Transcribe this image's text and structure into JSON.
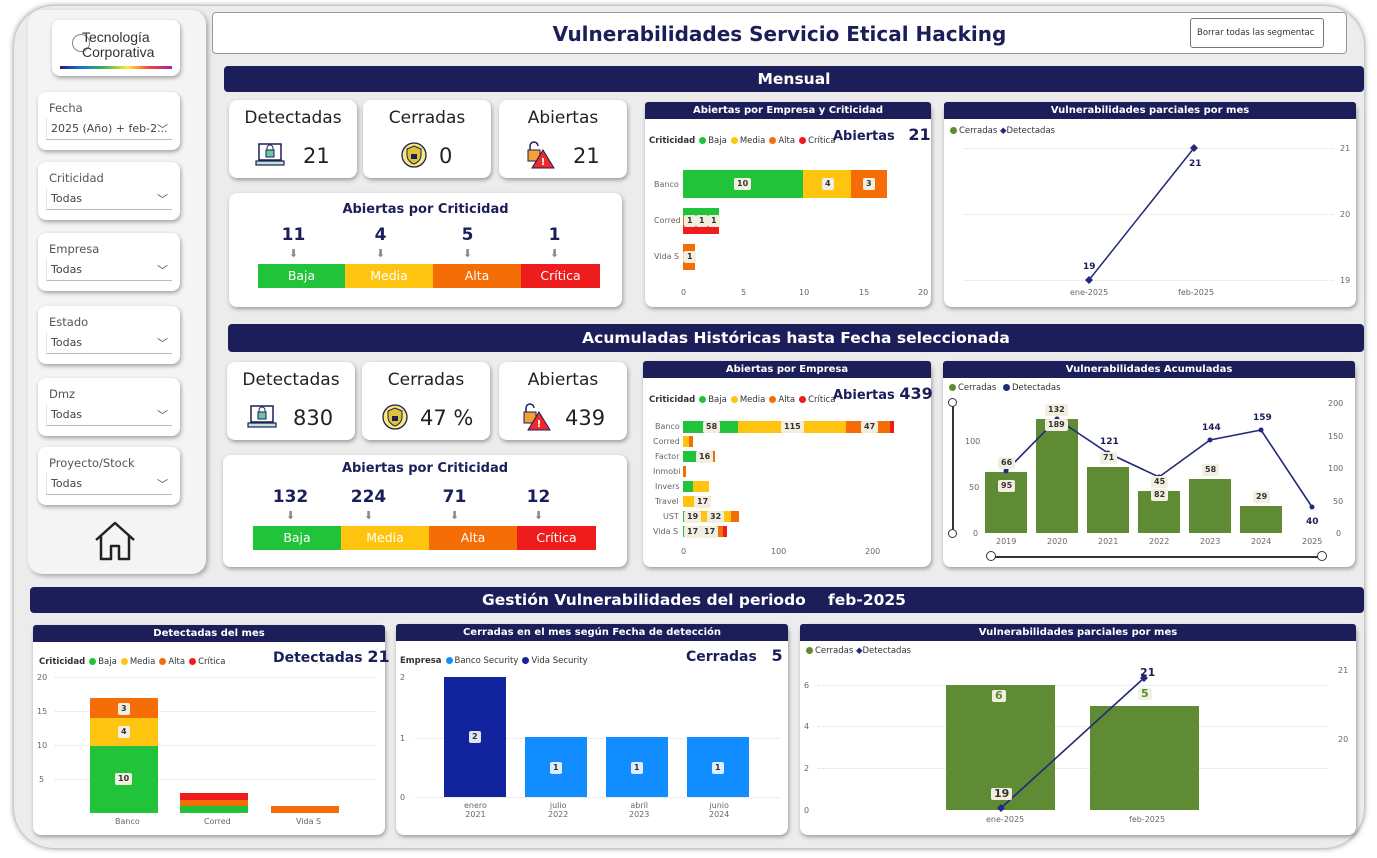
{
  "title": "Vulnerabilidades Servicio Etical Hacking",
  "clear_button": "Borrar todas las segmentac",
  "logo": {
    "line1": "Tecnología",
    "line2": "Corporativa"
  },
  "filters": [
    {
      "label": "Fecha",
      "value": "2025 (Año) + feb-2..."
    },
    {
      "label": "Criticidad",
      "value": "Todas"
    },
    {
      "label": "Empresa",
      "value": "Todas"
    },
    {
      "label": "Estado",
      "value": "Todas"
    },
    {
      "label": "Dmz",
      "value": "Todas"
    },
    {
      "label": "Proyecto/Stock",
      "value": "Todas"
    }
  ],
  "colors": {
    "navy": "#1c1e5a",
    "baja": "#21c33b",
    "media": "#fec40f",
    "alta": "#f46d06",
    "critica": "#ee1c1c",
    "cerradas": "#5f8b34",
    "detectadas": "#23297a",
    "blue_light": "#118dff",
    "blue_dark": "#12239e"
  },
  "criticidad_labels": {
    "title": "Criticidad",
    "baja": "Baja",
    "media": "Media",
    "alta": "Alta",
    "critica": "Crítica"
  },
  "mensual": {
    "band": "Mensual",
    "kpis": {
      "detectadas_label": "Detectadas",
      "detectadas": "21",
      "cerradas_label": "Cerradas",
      "cerradas": "0",
      "abiertas_label": "Abiertas",
      "abiertas": "21"
    },
    "crit_title": "Abiertas por Criticidad",
    "crit": {
      "baja": "11",
      "media": "4",
      "alta": "5",
      "critica": "1"
    },
    "empresa_chart": {
      "title": "Abiertas por Empresa y Criticidad",
      "big_label": "Abiertas",
      "big_value": "21",
      "categories": [
        "Banco",
        "Corred",
        "Vida S"
      ],
      "xticks": [
        "0",
        "5",
        "10",
        "15",
        "20"
      ],
      "seg_labels": {
        "banco": [
          "10",
          "4",
          "3"
        ],
        "corred": [
          "1",
          "1",
          "1"
        ],
        "vida": [
          "1"
        ]
      }
    },
    "parciales": {
      "title": "Vulnerabilidades parciales por mes",
      "legend": {
        "cerradas": "Cerradas",
        "detectadas": "Detectadas"
      },
      "x": [
        "ene-2025",
        "feb-2025"
      ],
      "points": [
        "19",
        "21"
      ],
      "yticks": [
        "21",
        "20",
        "19"
      ]
    }
  },
  "acumuladas": {
    "band": "Acumuladas Históricas hasta Fecha seleccionada",
    "kpis": {
      "detectadas_label": "Detectadas",
      "detectadas": "830",
      "cerradas_label": "Cerradas",
      "cerradas": "47 %",
      "abiertas_label": "Abiertas",
      "abiertas": "439"
    },
    "crit_title": "Abiertas por Criticidad",
    "crit": {
      "baja": "132",
      "media": "224",
      "alta": "71",
      "critica": "12"
    },
    "empresa_chart": {
      "title": "Abiertas por Empresa",
      "big_label": "Abiertas",
      "big_value": "439",
      "categories": [
        "Banco",
        "Corred",
        "Factor",
        "Inmobi",
        "Invers",
        "Travel",
        "UST",
        "Vida S"
      ],
      "xticks": [
        "0",
        "100",
        "200"
      ],
      "seg_labels": {
        "banco": [
          "58",
          "115",
          "47"
        ],
        "factor": [
          "16"
        ],
        "travel": [
          "17"
        ],
        "ust": [
          "19",
          "32"
        ],
        "vida": [
          "17",
          "17"
        ]
      }
    },
    "historicas": {
      "title": "Vulnerabilidades Acumuladas",
      "legend": {
        "cerradas": "Cerradas",
        "detectadas": "Detectadas"
      },
      "x": [
        "2019",
        "2020",
        "2021",
        "2022",
        "2023",
        "2024",
        "2025"
      ],
      "cerradas_labels": [
        "66",
        "132",
        "71",
        "45",
        "58",
        "29"
      ],
      "detectadas_labels": [
        "95",
        "189",
        "121",
        "82",
        "144",
        "159",
        "40"
      ],
      "yticks_left": [
        "100",
        "50",
        "0"
      ],
      "yticks_right": [
        "200",
        "150",
        "100",
        "50",
        "0"
      ]
    }
  },
  "gestion": {
    "band": "Gestión Vulnerabilidades del periodo",
    "period": "feb-2025",
    "detectadas_chart": {
      "title": "Detectadas del mes",
      "big_label": "Detectadas",
      "big_value": "21",
      "categories": [
        "Banco",
        "Corred",
        "Vida S"
      ],
      "yticks": [
        "20",
        "15",
        "10",
        "5"
      ],
      "seg_labels": [
        "10",
        "4",
        "3"
      ]
    },
    "cerradas_chart": {
      "title": "Cerradas en el mes según Fecha de detección",
      "big_label": "Cerradas",
      "big_value": "5",
      "legend_title": "Empresa",
      "legend": [
        "Banco Security",
        "Vida Security"
      ],
      "categories": [
        {
          "m": "enero",
          "y": "2021"
        },
        {
          "m": "julio",
          "y": "2022"
        },
        {
          "m": "abril",
          "y": "2023"
        },
        {
          "m": "junio",
          "y": "2024"
        }
      ],
      "values": [
        "2",
        "1",
        "1",
        "1"
      ],
      "yticks": [
        "2",
        "1",
        "0"
      ]
    },
    "parciales_chart": {
      "title": "Vulnerabilidades parciales por mes",
      "legend": {
        "cerradas": "Cerradas",
        "detectadas": "Detectadas"
      },
      "x": [
        "ene-2025",
        "feb-2025"
      ],
      "cerradas": [
        "6",
        "5"
      ],
      "detectadas": [
        "19",
        "21"
      ],
      "yticks_left": [
        "6",
        "4",
        "2",
        "0"
      ],
      "yticks_right": [
        "21",
        "20"
      ]
    }
  },
  "chart_data": [
    {
      "type": "bar",
      "title": "Abiertas por Empresa y Criticidad",
      "categories": [
        "Banco",
        "Corred",
        "Vida S"
      ],
      "series": [
        {
          "name": "Baja",
          "values": [
            10,
            1,
            0
          ]
        },
        {
          "name": "Media",
          "values": [
            4,
            0,
            0
          ]
        },
        {
          "name": "Alta",
          "values": [
            3,
            1,
            1
          ]
        },
        {
          "name": "Crítica",
          "values": [
            0,
            1,
            0
          ]
        }
      ],
      "xlim": [
        0,
        20
      ]
    },
    {
      "type": "line",
      "title": "Vulnerabilidades parciales por mes",
      "x": [
        "ene-2025",
        "feb-2025"
      ],
      "series": [
        {
          "name": "Detectadas",
          "values": [
            19,
            21
          ]
        }
      ]
    },
    {
      "type": "bar",
      "title": "Abiertas por Empresa",
      "categories": [
        "Banco",
        "Corred",
        "Factor",
        "Inmobi",
        "Invers",
        "Travel",
        "UST",
        "Vida S"
      ],
      "series": [
        {
          "name": "Baja",
          "values": [
            58,
            0,
            16,
            0,
            0,
            0,
            19,
            17
          ]
        },
        {
          "name": "Media",
          "values": [
            115,
            0,
            0,
            0,
            0,
            17,
            32,
            17
          ]
        },
        {
          "name": "Alta",
          "values": [
            47,
            0,
            0,
            0,
            0,
            0,
            0,
            0
          ]
        }
      ]
    },
    {
      "type": "bar",
      "title": "Vulnerabilidades Acumuladas",
      "x": [
        "2019",
        "2020",
        "2021",
        "2022",
        "2023",
        "2024",
        "2025"
      ],
      "series": [
        {
          "name": "Cerradas",
          "values": [
            66,
            132,
            71,
            45,
            58,
            29,
            0
          ]
        },
        {
          "name": "Detectadas",
          "values": [
            95,
            189,
            121,
            82,
            144,
            159,
            40
          ]
        }
      ]
    },
    {
      "type": "bar",
      "title": "Detectadas del mes",
      "categories": [
        "Banco",
        "Corred",
        "Vida S"
      ],
      "series": [
        {
          "name": "Baja",
          "values": [
            10,
            1,
            0
          ]
        },
        {
          "name": "Media",
          "values": [
            4,
            0,
            0
          ]
        },
        {
          "name": "Alta",
          "values": [
            3,
            1,
            1
          ]
        }
      ],
      "ylim": [
        0,
        20
      ]
    },
    {
      "type": "bar",
      "title": "Cerradas en el mes según Fecha de detección",
      "categories": [
        "enero 2021",
        "julio 2022",
        "abril 2023",
        "junio 2024"
      ],
      "series": [
        {
          "name": "Banco Security",
          "values": [
            0,
            1,
            1,
            1
          ]
        },
        {
          "name": "Vida Security",
          "values": [
            2,
            0,
            0,
            0
          ]
        }
      ]
    },
    {
      "type": "bar",
      "title": "Vulnerabilidades parciales por mes",
      "x": [
        "ene-2025",
        "feb-2025"
      ],
      "series": [
        {
          "name": "Cerradas",
          "values": [
            6,
            5
          ]
        },
        {
          "name": "Detectadas",
          "values": [
            19,
            21
          ]
        }
      ]
    }
  ]
}
